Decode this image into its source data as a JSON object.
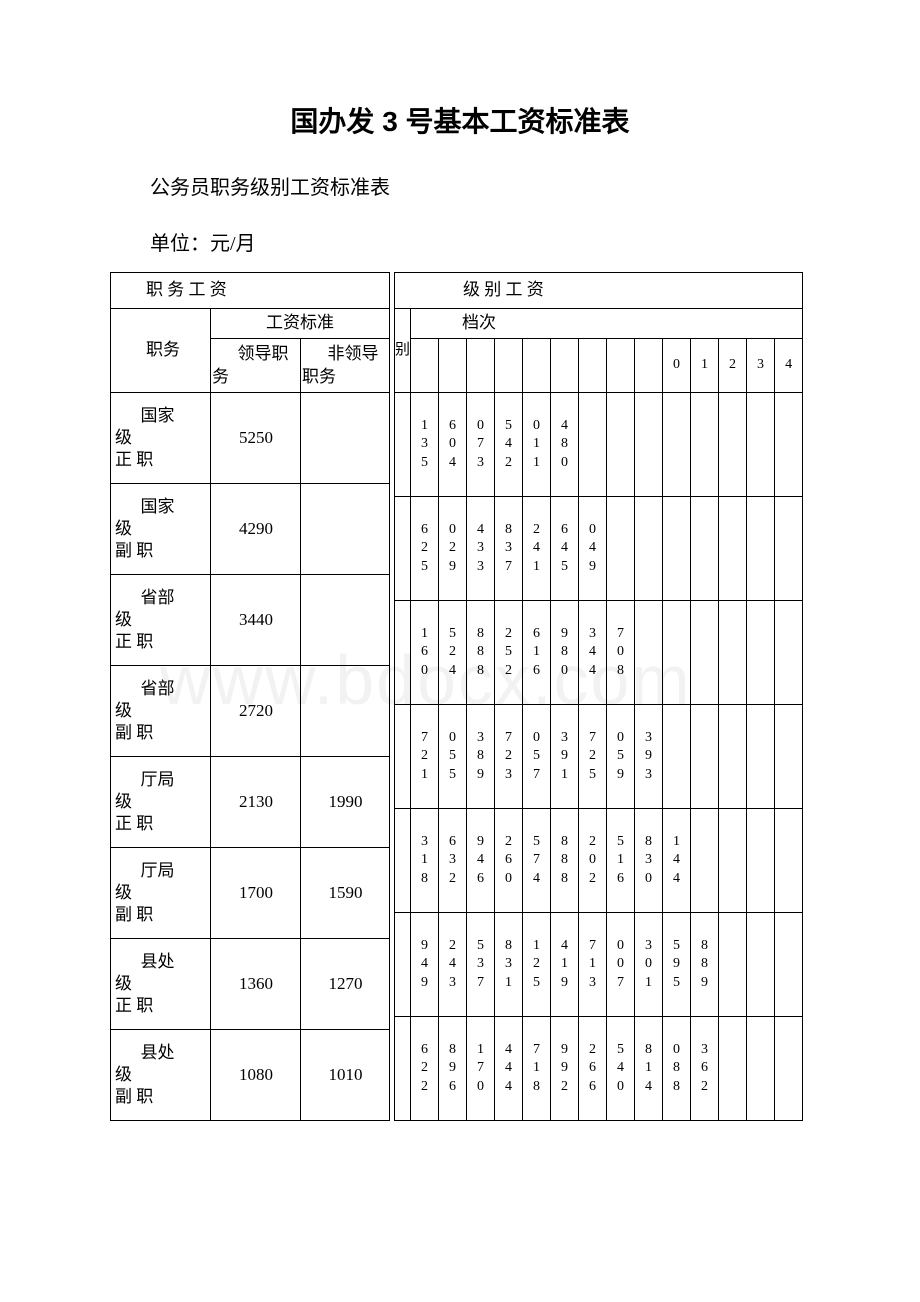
{
  "title": "国办发 3 号基本工资标准表",
  "subtitle": "公务员职务级别工资标准表",
  "unit": "单位：元/月",
  "watermark": "www.bdocx.com",
  "leftTable": {
    "header1": "职 务 工 资",
    "posLabel": "职务",
    "stdLabel": "工资标准",
    "leadLabel": "领导职务",
    "nonLeadLabel": "非领导职务",
    "rows": [
      {
        "pos": "国家级正职",
        "lead": "5250",
        "nonlead": ""
      },
      {
        "pos": "国家级副职",
        "lead": "4290",
        "nonlead": ""
      },
      {
        "pos": "省部级正职",
        "lead": "3440",
        "nonlead": ""
      },
      {
        "pos": "省部级副职",
        "lead": "2720",
        "nonlead": ""
      },
      {
        "pos": "厅局级正职",
        "lead": "2130",
        "nonlead": "1990"
      },
      {
        "pos": "厅局级副职",
        "lead": "1700",
        "nonlead": "1590"
      },
      {
        "pos": "县处级正职",
        "lead": "1360",
        "nonlead": "1270"
      },
      {
        "pos": "县处级副职",
        "lead": "1080",
        "nonlead": "1010"
      }
    ]
  },
  "rightTable": {
    "header1": "级 别 工 资",
    "levelLabel": "别",
    "stepLabel": "档次",
    "tailCols": [
      "0",
      "1",
      "2",
      "3",
      "4"
    ],
    "rows": [
      [
        "135",
        "604",
        "073",
        "542",
        "011",
        "480",
        "",
        "",
        "",
        "",
        "",
        "",
        "",
        "",
        ""
      ],
      [
        "625",
        "029",
        "433",
        "837",
        "241",
        "645",
        "049",
        "",
        "",
        "",
        "",
        "",
        "",
        "",
        ""
      ],
      [
        "160",
        "524",
        "888",
        "252",
        "616",
        "980",
        "344",
        "708",
        "",
        "",
        "",
        "",
        "",
        "",
        ""
      ],
      [
        "721",
        "055",
        "389",
        "723",
        "057",
        "391",
        "725",
        "059",
        "393",
        "",
        "",
        "",
        "",
        "",
        ""
      ],
      [
        "318",
        "632",
        "946",
        "260",
        "574",
        "888",
        "202",
        "516",
        "830",
        "144",
        "",
        "",
        "",
        "",
        ""
      ],
      [
        "949",
        "243",
        "537",
        "831",
        "125",
        "419",
        "713",
        "007",
        "301",
        "595",
        "889",
        "",
        "",
        "",
        ""
      ],
      [
        "622",
        "896",
        "170",
        "444",
        "718",
        "992",
        "266",
        "540",
        "814",
        "088",
        "362",
        "",
        "",
        "",
        ""
      ]
    ]
  }
}
